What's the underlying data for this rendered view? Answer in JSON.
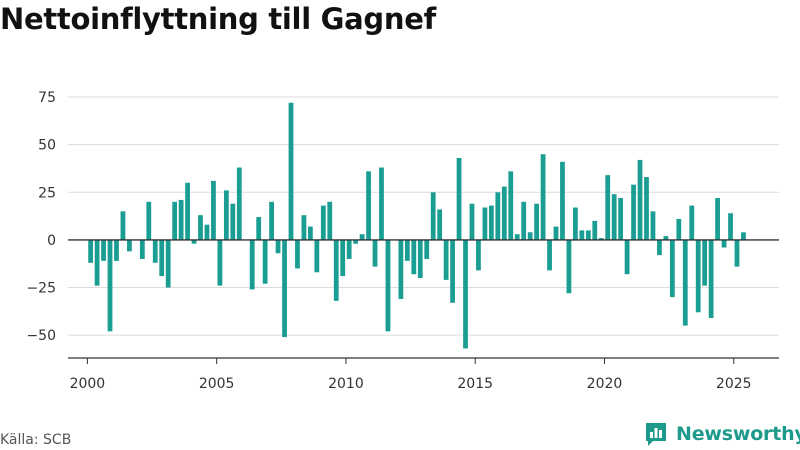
{
  "chart_data": {
    "type": "bar",
    "title": "Nettoinflyttning till Gagnef",
    "xlabel": "",
    "ylabel": "",
    "ylim": [
      -62,
      85
    ],
    "xlim": [
      1999.25,
      2026.75
    ],
    "y_ticks": [
      75,
      50,
      25,
      0,
      -25,
      -50
    ],
    "y_tick_labels": [
      "75",
      "50",
      "25",
      "0",
      "−25",
      "−50"
    ],
    "x_ticks": [
      2000,
      2005,
      2010,
      2015,
      2020,
      2025
    ],
    "x_tick_labels": [
      "2000",
      "2005",
      "2010",
      "2015",
      "2020",
      "2025"
    ],
    "grid": true,
    "bar_color": "#1a9e94",
    "frequency": "quarterly",
    "series": [
      {
        "start": "2000-Q1",
        "values": [
          -12,
          -24,
          -11,
          -48,
          -11,
          15,
          -6,
          0,
          -10,
          20,
          -12,
          -19,
          -25,
          20,
          21,
          30,
          -2,
          13,
          8,
          31,
          -24,
          26,
          19,
          38,
          0,
          -26,
          12,
          -23,
          20,
          -7,
          -51,
          72,
          -15,
          13,
          7,
          -17,
          18,
          20,
          -32,
          -19,
          -10,
          -2,
          3,
          36,
          -14,
          38,
          -48,
          0,
          -31,
          -11,
          -18,
          -20,
          -10,
          25,
          16,
          -21,
          -33,
          43,
          -57,
          19,
          -16,
          17,
          18,
          25,
          28,
          36,
          3,
          20,
          4,
          19,
          45,
          -16,
          7,
          41,
          -28,
          17,
          5,
          5,
          10,
          1,
          34,
          24,
          22,
          -18,
          29,
          42,
          33,
          15,
          -8,
          2,
          -30,
          11,
          -45,
          18,
          -38,
          -24,
          -41,
          22,
          -4,
          14,
          -14,
          4
        ]
      }
    ]
  },
  "source": "Källa: SCB",
  "brand": {
    "name": "Newsworthy",
    "icon": "newsworthy-logo-icon",
    "color": "#1e9a8c"
  }
}
